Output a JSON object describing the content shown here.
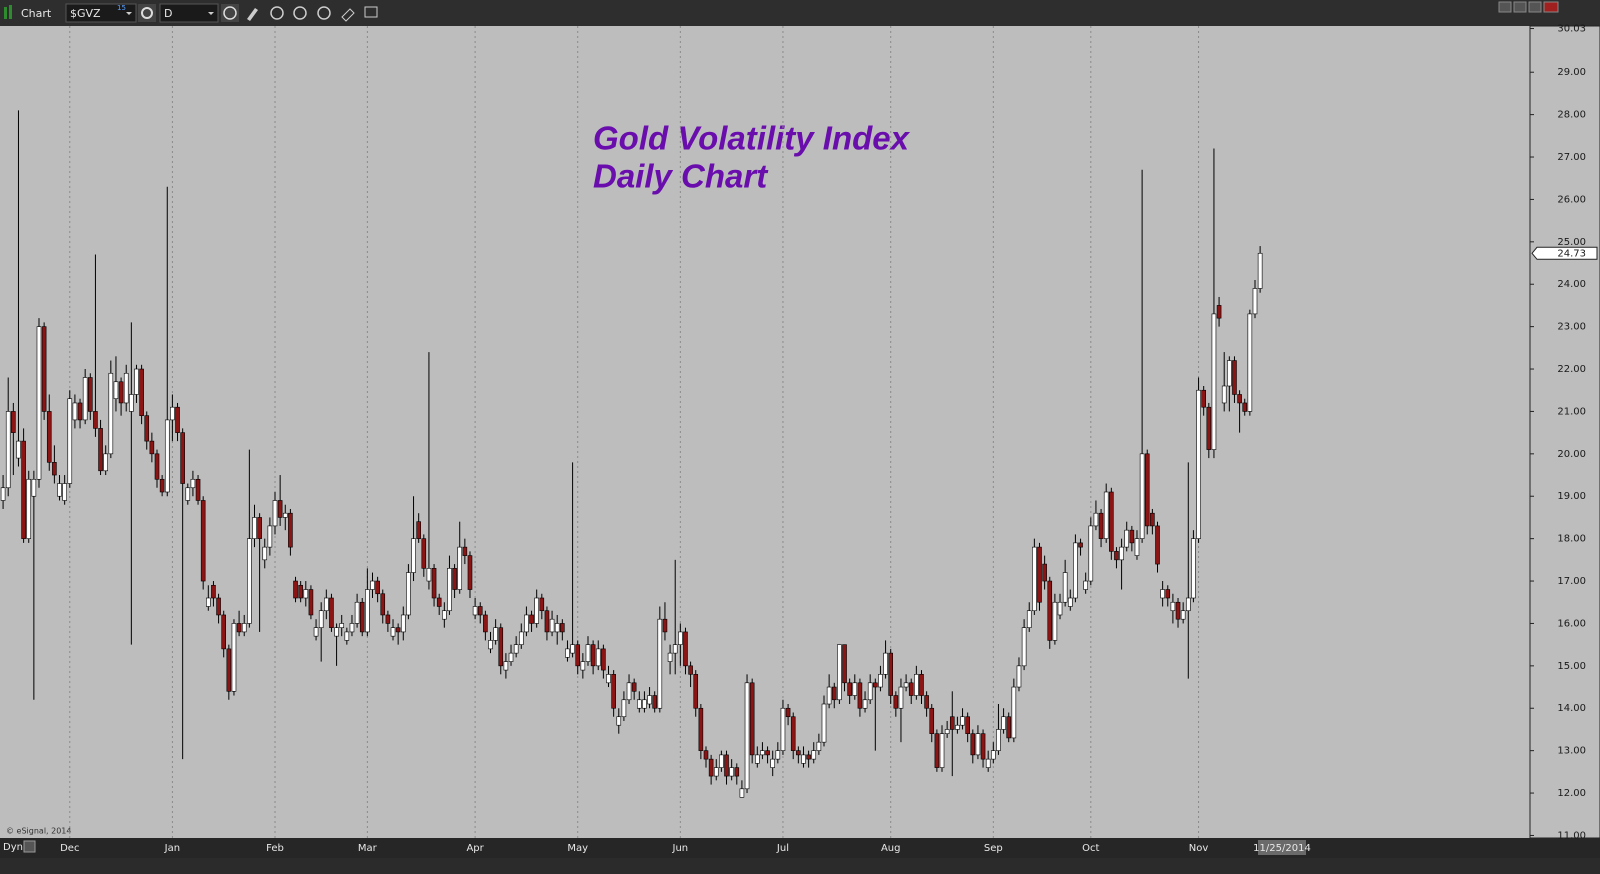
{
  "toolbar": {
    "app": "Chart",
    "symbol": "$GVZ",
    "symbol_badge": "15",
    "interval": "D"
  },
  "status": {
    "mode": "Dyn",
    "copyright": "© eSignal, 2014",
    "cursor_date": "11/25/2014"
  },
  "chart_data": {
    "type": "candlestick",
    "title": "Gold Volatility Index",
    "subtitle": "Daily Chart",
    "up_color": "#ffffff",
    "down_color": "#8b1414",
    "grid": "x",
    "open": [
      18.9,
      19.2,
      21.0,
      19.9,
      20.3,
      18.0,
      19.0,
      19.4,
      23.0,
      21.0,
      19.8,
      19.0,
      18.9,
      19.3,
      20.8,
      21.2,
      20.8,
      21.8,
      21.0,
      20.6,
      19.6,
      20.0,
      21.3,
      21.7,
      21.2,
      21.0,
      21.4,
      22.0,
      20.9,
      20.3,
      20.0,
      19.4,
      19.1,
      20.8,
      21.1,
      20.5,
      18.9,
      19.2,
      19.4,
      18.9,
      16.4,
      16.9,
      16.6,
      16.2,
      15.4,
      14.4,
      16.0,
      15.8,
      16.0,
      18.0,
      18.5,
      17.5,
      17.8,
      18.3,
      18.9,
      18.5,
      18.6,
      17.0,
      16.9,
      16.6,
      16.8,
      15.7,
      15.9,
      16.3,
      16.6,
      15.7,
      15.9,
      15.6,
      15.8,
      16.0,
      16.5,
      15.8,
      16.8,
      17.0,
      16.7,
      16.2,
      15.7,
      15.9,
      15.8,
      16.2,
      17.2,
      18.4,
      18.0,
      17.0,
      17.3,
      16.6,
      16.1,
      16.3,
      17.3,
      16.8,
      17.8,
      17.6,
      16.2,
      16.4,
      16.2,
      15.4,
      15.6,
      15.9,
      14.9,
      15.1,
      15.3,
      15.5,
      15.8,
      16.2,
      16.0,
      16.6,
      16.3,
      15.8,
      15.8,
      16.0,
      15.2,
      15.3,
      15.5,
      14.9,
      15.1,
      15.5,
      15.0,
      15.4,
      14.6,
      14.8,
      13.6,
      13.8,
      14.2,
      14.6,
      14.0,
      14.0,
      14.1,
      14.3,
      14.0,
      16.1,
      15.1,
      15.3,
      15.5,
      15.8,
      15.0,
      14.8,
      14.0,
      13.0,
      12.8,
      12.4,
      12.6,
      12.9,
      12.4,
      12.6,
      11.9,
      12.1,
      14.6,
      12.7,
      12.9,
      13.0,
      12.6,
      12.8,
      13.0,
      14.0,
      13.8,
      13.0,
      12.7,
      12.9,
      12.8,
      13.0,
      13.2,
      14.1,
      14.5,
      14.2,
      15.5,
      14.6,
      14.3,
      14.6,
      14.0,
      14.2,
      14.6,
      14.5,
      14.8,
      15.3,
      14.3,
      14.0,
      14.5,
      14.6,
      14.3,
      14.8,
      14.3,
      14.0,
      13.4,
      12.6,
      13.4,
      13.8,
      13.5,
      13.6,
      13.8,
      13.4,
      12.9,
      13.4,
      12.6,
      12.8,
      13.0,
      13.5,
      13.8,
      13.3,
      14.5,
      15.0,
      15.9,
      16.3,
      17.8,
      17.4,
      17.0,
      15.6,
      16.2,
      16.5,
      16.4,
      16.6,
      17.9,
      16.8,
      17.0,
      18.3,
      18.6,
      18.0,
      19.1,
      17.7,
      17.5,
      17.8,
      18.2,
      17.6,
      18.0,
      20.0,
      18.6,
      18.3,
      16.6,
      16.8,
      16.3,
      16.5,
      16.1,
      16.3,
      16.6,
      18.0,
      21.5,
      21.1,
      20.1,
      23.5,
      21.2,
      21.6,
      22.2,
      21.4,
      21.2,
      21.0,
      23.3,
      23.9
    ],
    "high": [
      19.5,
      21.8,
      21.2,
      28.1,
      20.6,
      19.6,
      19.6,
      23.2,
      23.1,
      21.4,
      20.2,
      19.5,
      19.5,
      21.5,
      21.4,
      21.3,
      22.0,
      21.9,
      24.7,
      20.8,
      20.2,
      22.2,
      22.3,
      21.8,
      22.1,
      23.1,
      22.1,
      22.1,
      21.0,
      20.5,
      20.1,
      19.5,
      26.3,
      21.4,
      21.2,
      20.6,
      19.3,
      19.6,
      19.5,
      19.0,
      16.9,
      17.0,
      16.7,
      16.3,
      15.5,
      16.1,
      16.3,
      16.2,
      20.1,
      18.8,
      18.6,
      18.0,
      18.5,
      19.1,
      19.5,
      18.8,
      18.7,
      17.1,
      17.0,
      17.0,
      16.9,
      16.1,
      16.5,
      16.8,
      16.7,
      16.0,
      16.2,
      15.9,
      16.2,
      16.7,
      16.6,
      17.3,
      17.2,
      17.1,
      16.8,
      16.3,
      16.1,
      16.0,
      16.4,
      17.4,
      19.0,
      18.6,
      18.1,
      22.4,
      17.4,
      16.7,
      16.5,
      17.6,
      17.4,
      18.4,
      18.0,
      17.7,
      16.6,
      16.5,
      16.3,
      15.8,
      16.1,
      16.0,
      15.3,
      15.5,
      15.7,
      16.0,
      16.4,
      16.3,
      16.8,
      16.7,
      16.4,
      16.3,
      16.2,
      16.1,
      15.6,
      19.8,
      15.6,
      15.3,
      15.7,
      15.6,
      15.6,
      15.5,
      15.0,
      14.9,
      14.0,
      14.4,
      14.8,
      14.7,
      14.4,
      14.4,
      14.5,
      14.4,
      16.4,
      16.5,
      15.5,
      17.5,
      16.0,
      15.9,
      15.1,
      14.9,
      14.1,
      13.1,
      12.9,
      12.8,
      13.0,
      13.0,
      12.8,
      12.7,
      12.3,
      14.8,
      14.7,
      13.1,
      13.2,
      13.1,
      13.0,
      13.2,
      14.2,
      14.1,
      13.9,
      13.1,
      13.1,
      13.0,
      13.2,
      13.4,
      14.3,
      14.8,
      14.6,
      15.5,
      15.5,
      14.7,
      14.8,
      14.7,
      14.4,
      14.8,
      14.7,
      15.0,
      15.6,
      15.4,
      14.4,
      14.7,
      14.8,
      14.7,
      15.0,
      14.9,
      14.4,
      14.1,
      13.5,
      13.6,
      13.7,
      14.4,
      13.8,
      14.0,
      13.9,
      13.5,
      13.6,
      13.5,
      13.0,
      13.2,
      14.1,
      14.0,
      13.9,
      14.7,
      15.2,
      16.1,
      16.5,
      18.0,
      17.9,
      17.6,
      17.1,
      16.7,
      16.7,
      17.5,
      16.8,
      18.1,
      18.0,
      17.2,
      18.5,
      18.9,
      18.7,
      19.3,
      19.2,
      17.8,
      18.0,
      18.4,
      18.3,
      18.2,
      26.7,
      20.1,
      18.7,
      18.4,
      17.0,
      16.9,
      16.7,
      16.6,
      16.5,
      19.8,
      18.2,
      21.8,
      21.6,
      21.2,
      27.2,
      23.7,
      22.4,
      22.3,
      22.3,
      21.5,
      21.3,
      23.4,
      24.1,
      24.9
    ],
    "low": [
      18.7,
      19.0,
      19.5,
      19.7,
      17.9,
      17.9,
      14.2,
      19.2,
      20.8,
      19.6,
      19.3,
      18.9,
      18.8,
      19.2,
      20.6,
      20.6,
      20.7,
      20.8,
      20.4,
      19.5,
      19.5,
      19.9,
      21.0,
      20.9,
      21.0,
      15.5,
      21.2,
      20.7,
      20.1,
      19.8,
      19.2,
      19.0,
      19.0,
      20.3,
      20.3,
      12.8,
      18.8,
      19.0,
      18.8,
      16.8,
      16.3,
      16.4,
      16.0,
      15.2,
      14.2,
      14.3,
      15.7,
      15.7,
      15.9,
      17.8,
      15.8,
      17.3,
      17.6,
      18.1,
      18.3,
      18.2,
      17.6,
      16.5,
      16.5,
      16.4,
      16.1,
      15.6,
      15.1,
      16.1,
      15.8,
      15.0,
      15.7,
      15.5,
      15.7,
      15.9,
      15.7,
      15.7,
      16.6,
      16.5,
      16.0,
      15.8,
      15.6,
      15.5,
      15.6,
      16.1,
      17.0,
      17.9,
      17.1,
      16.8,
      16.4,
      16.2,
      15.9,
      16.2,
      16.6,
      16.7,
      17.4,
      16.6,
      16.1,
      16.0,
      15.6,
      15.3,
      15.5,
      14.8,
      14.7,
      15.0,
      15.2,
      15.4,
      15.7,
      15.8,
      15.9,
      16.1,
      15.6,
      15.7,
      15.5,
      15.6,
      15.1,
      15.2,
      14.8,
      14.7,
      15.0,
      14.8,
      14.9,
      14.7,
      14.5,
      13.8,
      13.4,
      13.7,
      14.1,
      14.2,
      13.9,
      13.9,
      14.0,
      13.9,
      13.9,
      15.6,
      14.8,
      14.8,
      15.0,
      14.8,
      14.5,
      13.8,
      12.8,
      12.6,
      12.2,
      12.3,
      12.5,
      12.2,
      12.3,
      12.2,
      11.9,
      12.0,
      12.7,
      12.6,
      12.8,
      12.7,
      12.4,
      12.7,
      12.9,
      13.6,
      12.8,
      12.7,
      12.6,
      12.6,
      12.7,
      12.9,
      13.1,
      14.0,
      14.0,
      14.1,
      14.4,
      14.1,
      14.2,
      13.8,
      13.9,
      14.1,
      13.0,
      14.4,
      14.7,
      14.1,
      13.8,
      13.2,
      14.4,
      14.1,
      14.2,
      14.1,
      13.8,
      13.2,
      12.5,
      12.5,
      13.3,
      12.4,
      13.4,
      13.5,
      13.2,
      12.7,
      12.8,
      12.6,
      12.5,
      12.7,
      12.9,
      13.4,
      13.2,
      13.2,
      14.4,
      14.9,
      15.8,
      16.2,
      16.3,
      16.8,
      15.4,
      15.5,
      16.1,
      16.4,
      16.3,
      16.5,
      17.6,
      16.7,
      16.9,
      18.2,
      17.8,
      17.9,
      17.5,
      17.3,
      16.8,
      17.7,
      17.7,
      17.5,
      17.9,
      18.1,
      18.1,
      17.2,
      16.4,
      16.4,
      16.0,
      15.9,
      16.0,
      14.7,
      16.5,
      17.9,
      20.9,
      19.9,
      19.9,
      23.0,
      21.0,
      21.0,
      21.2,
      20.5,
      20.9,
      20.9,
      23.2,
      23.8
    ],
    "close": [
      19.2,
      21.0,
      20.5,
      20.3,
      18.0,
      19.4,
      19.4,
      23.0,
      21.0,
      19.8,
      19.5,
      19.3,
      19.3,
      21.3,
      21.2,
      20.8,
      21.8,
      21.0,
      20.6,
      19.6,
      20.0,
      21.9,
      21.7,
      21.2,
      21.9,
      21.4,
      22.0,
      20.9,
      20.3,
      20.0,
      19.4,
      19.1,
      20.8,
      21.1,
      20.5,
      19.3,
      19.2,
      19.4,
      18.9,
      17.0,
      16.6,
      16.6,
      16.2,
      15.4,
      14.4,
      16.0,
      15.8,
      16.0,
      18.0,
      18.5,
      18.0,
      17.8,
      18.3,
      18.9,
      18.5,
      18.6,
      17.8,
      16.6,
      16.6,
      16.8,
      16.2,
      15.9,
      16.3,
      16.6,
      15.9,
      15.9,
      16.0,
      15.8,
      16.0,
      16.5,
      15.8,
      16.8,
      17.0,
      16.7,
      16.2,
      16.0,
      15.9,
      15.8,
      16.2,
      17.2,
      18.0,
      18.0,
      17.3,
      17.3,
      16.6,
      16.4,
      16.3,
      17.3,
      16.8,
      17.8,
      17.6,
      16.8,
      16.4,
      16.2,
      15.8,
      15.6,
      15.9,
      15.0,
      15.1,
      15.3,
      15.5,
      15.8,
      16.2,
      16.0,
      16.6,
      16.3,
      15.8,
      16.1,
      16.0,
      15.8,
      15.4,
      15.5,
      15.0,
      15.1,
      15.5,
      15.0,
      15.4,
      14.9,
      14.8,
      14.0,
      13.8,
      14.2,
      14.6,
      14.4,
      14.2,
      14.2,
      14.3,
      14.0,
      16.1,
      15.8,
      15.3,
      15.5,
      15.8,
      15.0,
      14.8,
      14.0,
      13.0,
      12.8,
      12.4,
      12.6,
      12.9,
      12.4,
      12.6,
      12.4,
      12.1,
      14.6,
      12.9,
      12.9,
      13.0,
      12.9,
      12.8,
      13.0,
      14.0,
      13.8,
      13.0,
      12.9,
      12.9,
      12.8,
      13.0,
      13.2,
      14.1,
      14.5,
      14.2,
      15.5,
      14.6,
      14.3,
      14.6,
      14.0,
      14.2,
      14.6,
      14.5,
      14.8,
      15.3,
      14.3,
      14.0,
      14.5,
      14.6,
      14.3,
      14.8,
      14.3,
      14.0,
      13.4,
      12.6,
      13.4,
      13.5,
      13.5,
      13.6,
      13.8,
      13.4,
      12.9,
      13.4,
      12.8,
      12.8,
      13.0,
      13.5,
      13.8,
      13.3,
      14.5,
      15.0,
      15.9,
      16.3,
      17.8,
      16.5,
      17.0,
      15.6,
      16.5,
      16.5,
      17.2,
      16.6,
      17.9,
      17.8,
      17.0,
      18.3,
      18.6,
      18.0,
      19.1,
      17.7,
      17.5,
      17.8,
      18.2,
      17.9,
      18.0,
      20.0,
      18.3,
      18.3,
      17.4,
      16.8,
      16.6,
      16.5,
      16.1,
      16.3,
      16.6,
      18.0,
      21.5,
      21.1,
      20.1,
      23.3,
      23.2,
      21.6,
      22.2,
      21.4,
      21.2,
      21.0,
      23.3,
      23.9,
      24.73
    ],
    "xlim": [
      -0.6,
      297.6
    ],
    "xticks": [
      {
        "value": 13,
        "label": "Dec"
      },
      {
        "value": 33,
        "label": "Jan"
      },
      {
        "value": 53,
        "label": "Feb"
      },
      {
        "value": 71,
        "label": "Mar"
      },
      {
        "value": 92,
        "label": "Apr"
      },
      {
        "value": 112,
        "label": "May"
      },
      {
        "value": 132,
        "label": "Jun"
      },
      {
        "value": 152,
        "label": "Jul"
      },
      {
        "value": 173,
        "label": "Aug"
      },
      {
        "value": 193,
        "label": "Sep"
      },
      {
        "value": 212,
        "label": "Oct"
      },
      {
        "value": 233,
        "label": "Nov"
      }
    ],
    "ylim": [
      10.94,
      30.09
    ],
    "yticks": [
      {
        "value": 11,
        "label": "11.00"
      },
      {
        "value": 12,
        "label": "12.00"
      },
      {
        "value": 13,
        "label": "13.00"
      },
      {
        "value": 14,
        "label": "14.00"
      },
      {
        "value": 15,
        "label": "15.00"
      },
      {
        "value": 16,
        "label": "16.00"
      },
      {
        "value": 17,
        "label": "17.00"
      },
      {
        "value": 18,
        "label": "18.00"
      },
      {
        "value": 19,
        "label": "19.00"
      },
      {
        "value": 20,
        "label": "20.00"
      },
      {
        "value": 21,
        "label": "21.00"
      },
      {
        "value": 22,
        "label": "22.00"
      },
      {
        "value": 23,
        "label": "23.00"
      },
      {
        "value": 24,
        "label": "24.00"
      },
      {
        "value": 25,
        "label": "25.00"
      },
      {
        "value": 26,
        "label": "26.00"
      },
      {
        "value": 27,
        "label": "27.00"
      },
      {
        "value": 28,
        "label": "28.00"
      },
      {
        "value": 29,
        "label": "29.00"
      },
      {
        "value": 30.03,
        "label": "30.03"
      }
    ]
  }
}
